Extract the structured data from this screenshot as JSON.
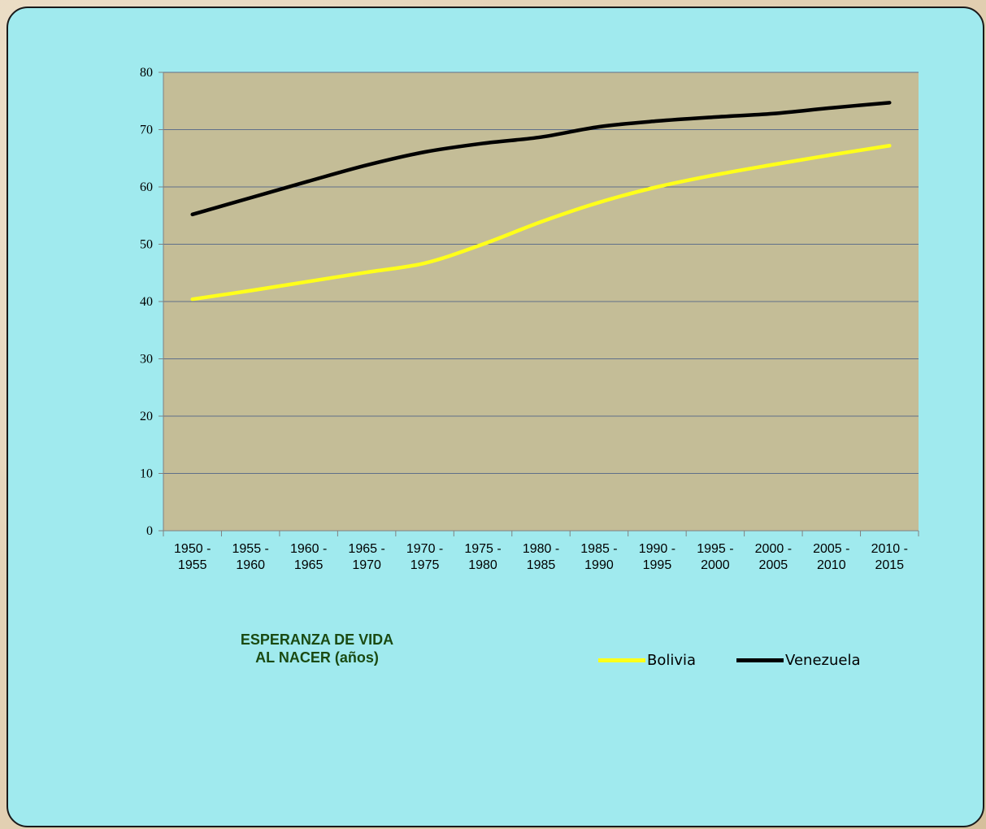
{
  "title": {
    "line1": "ESPERANZA DE VIDA",
    "line2": "AL NACER (años)"
  },
  "chart_data": {
    "type": "line",
    "categories": [
      [
        "1950 -",
        "1955"
      ],
      [
        "1955 -",
        "1960"
      ],
      [
        "1960 -",
        "1965"
      ],
      [
        "1965 -",
        "1970"
      ],
      [
        "1970 -",
        "1975"
      ],
      [
        "1975 -",
        "1980"
      ],
      [
        "1980 -",
        "1985"
      ],
      [
        "1985 -",
        "1990"
      ],
      [
        "1990 -",
        "1995"
      ],
      [
        "1995 -",
        "2000"
      ],
      [
        "2000 -",
        "2005"
      ],
      [
        "2005 -",
        "2010"
      ],
      [
        "2010 -",
        "2015"
      ]
    ],
    "series": [
      {
        "name": "Bolivia",
        "color": "#ffff1a",
        "values": [
          40.4,
          41.9,
          43.5,
          45.1,
          46.7,
          50.0,
          53.9,
          57.3,
          60.0,
          62.1,
          63.9,
          65.6,
          67.2
        ]
      },
      {
        "name": "Venezuela",
        "color": "#000000",
        "values": [
          55.2,
          58.1,
          61.0,
          63.8,
          66.1,
          67.6,
          68.7,
          70.5,
          71.5,
          72.2,
          72.8,
          73.8,
          74.7
        ]
      }
    ],
    "ylim": [
      0,
      80
    ],
    "yticks": [
      0,
      10,
      20,
      30,
      40,
      50,
      60,
      70,
      80
    ],
    "plot_background": "#c4bd97",
    "gridline_color": "#5f6f8a",
    "grid": true,
    "legend_position": "bottom-right"
  }
}
